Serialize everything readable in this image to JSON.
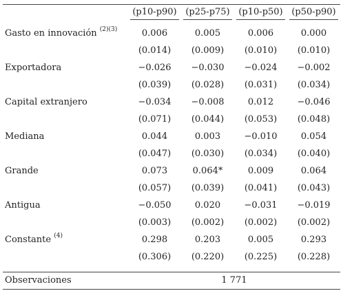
{
  "columns": [
    "(p10-p90)",
    "(p25-p75)",
    "(p10-p50)",
    "(p50-p90)"
  ],
  "rows": [
    {
      "label": "Gasto en innovación",
      "note": "(2)(3)",
      "coef": [
        "0.006",
        "0.005",
        "0.006",
        "0.000"
      ],
      "se": [
        "(0.014)",
        "(0.009)",
        "(0.010)",
        "(0.010)"
      ]
    },
    {
      "label": "Exportadora",
      "note": "",
      "coef": [
        "−0.026",
        "−0.030",
        "−0.024",
        "−0.002"
      ],
      "se": [
        "(0.039)",
        "(0.028)",
        "(0.031)",
        "(0.034)"
      ]
    },
    {
      "label": "Capital extranjero",
      "note": "",
      "coef": [
        "−0.034",
        "−0.008",
        "0.012",
        "−0.046"
      ],
      "se": [
        "(0.071)",
        "(0.044)",
        "(0.053)",
        "(0.048)"
      ]
    },
    {
      "label": "Mediana",
      "note": "",
      "coef": [
        "0.044",
        "0.003",
        "−0.010",
        "0.054"
      ],
      "se": [
        "(0.047)",
        "(0.030)",
        "(0.034)",
        "(0.040)"
      ]
    },
    {
      "label": "Grande",
      "note": "",
      "coef": [
        "0.073",
        "0.064*",
        "0.009",
        "0.064"
      ],
      "se": [
        "(0.057)",
        "(0.039)",
        "(0.041)",
        "(0.043)"
      ]
    },
    {
      "label": "Antigua",
      "note": "",
      "coef": [
        "−0.050",
        "0.020",
        "−0.031",
        "−0.019"
      ],
      "se": [
        "(0.003)",
        "(0.002)",
        "(0.002)",
        "(0.002)"
      ]
    },
    {
      "label": "Constante",
      "note": "(4)",
      "coef": [
        "0.298",
        "0.203",
        "0.005",
        "0.293"
      ],
      "se": [
        "(0.306)",
        "(0.220)",
        "(0.225)",
        "(0.228)"
      ]
    }
  ],
  "observations": {
    "label": "Observaciones",
    "value": "1 771"
  }
}
